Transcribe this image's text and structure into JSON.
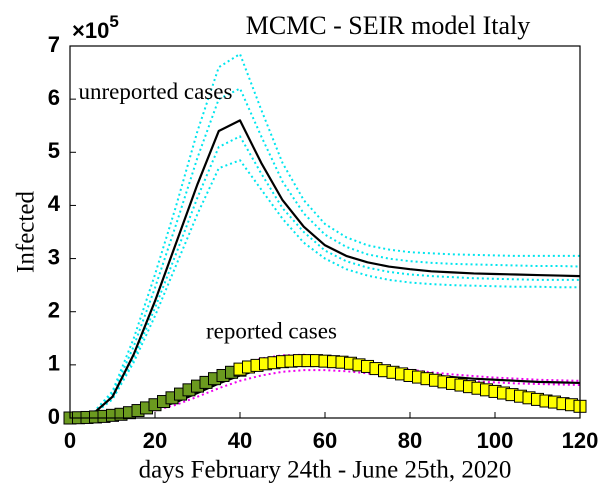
{
  "chart_data": {
    "type": "line",
    "title": "MCMC - SEIR model Italy",
    "x_label": "days February 24th - June 25th, 2020",
    "y_label": "Infected",
    "y_multiplier": {
      "base": "×10",
      "exponent": "5"
    },
    "annotations": [
      {
        "text": "unreported cases",
        "x": 2,
        "y": 6.1
      },
      {
        "text": "reported cases",
        "x": 32,
        "y": 1.6
      }
    ],
    "xlim": [
      0,
      120
    ],
    "xticks": [
      0,
      20,
      40,
      60,
      80,
      100,
      120
    ],
    "ylim": [
      0,
      7
    ],
    "yticks": [
      0,
      1,
      2,
      3,
      4,
      5,
      6,
      7
    ],
    "x": [
      0,
      5,
      10,
      15,
      20,
      25,
      30,
      35,
      40,
      45,
      50,
      55,
      60,
      65,
      70,
      75,
      80,
      85,
      90,
      95,
      100,
      105,
      110,
      115,
      120
    ],
    "series": [
      {
        "color": "#00e5ee",
        "style": "dotted",
        "values": [
          0,
          0.06,
          0.5,
          1.5,
          2.7,
          4.0,
          5.4,
          6.6,
          6.85,
          5.8,
          4.8,
          4.1,
          3.65,
          3.4,
          3.25,
          3.17,
          3.12,
          3.1,
          3.08,
          3.07,
          3.06,
          3.05,
          3.05,
          3.05,
          3.05
        ]
      },
      {
        "color": "#00e5ee",
        "style": "dotted",
        "values": [
          0,
          0.06,
          0.45,
          1.35,
          2.45,
          3.65,
          4.9,
          6.0,
          6.2,
          5.3,
          4.45,
          3.85,
          3.45,
          3.22,
          3.08,
          3.0,
          2.95,
          2.92,
          2.9,
          2.89,
          2.88,
          2.87,
          2.86,
          2.86,
          2.85
        ]
      },
      {
        "color": "#00e5ee",
        "style": "dotted",
        "values": [
          0,
          0.05,
          0.38,
          1.13,
          2.07,
          3.1,
          4.15,
          5.1,
          5.3,
          4.6,
          3.95,
          3.5,
          3.15,
          2.95,
          2.83,
          2.75,
          2.7,
          2.67,
          2.65,
          2.63,
          2.62,
          2.61,
          2.6,
          2.6,
          2.6
        ]
      },
      {
        "color": "#00e5ee",
        "style": "dotted",
        "values": [
          0,
          0.04,
          0.35,
          1.05,
          1.92,
          2.88,
          3.84,
          4.7,
          4.85,
          4.3,
          3.75,
          3.3,
          3.0,
          2.8,
          2.68,
          2.6,
          2.55,
          2.52,
          2.5,
          2.49,
          2.48,
          2.47,
          2.47,
          2.46,
          2.46
        ]
      },
      {
        "color": "#000000",
        "style": "solid",
        "values": [
          0,
          0.05,
          0.4,
          1.2,
          2.2,
          3.3,
          4.4,
          5.4,
          5.6,
          4.8,
          4.1,
          3.6,
          3.25,
          3.05,
          2.93,
          2.85,
          2.8,
          2.76,
          2.74,
          2.72,
          2.71,
          2.7,
          2.69,
          2.68,
          2.67
        ]
      },
      {
        "color": "#ee00ee",
        "style": "dotted",
        "values": [
          0,
          0.006,
          0.04,
          0.1,
          0.21,
          0.37,
          0.58,
          0.8,
          0.98,
          1.12,
          1.18,
          1.19,
          1.16,
          1.11,
          1.04,
          0.97,
          0.91,
          0.86,
          0.82,
          0.79,
          0.76,
          0.74,
          0.72,
          0.71,
          0.7
        ]
      },
      {
        "color": "#ee00ee",
        "style": "dotted",
        "values": [
          0,
          0.004,
          0.025,
          0.07,
          0.14,
          0.25,
          0.4,
          0.56,
          0.7,
          0.8,
          0.87,
          0.9,
          0.9,
          0.88,
          0.84,
          0.8,
          0.77,
          0.74,
          0.71,
          0.69,
          0.67,
          0.65,
          0.64,
          0.63,
          0.62
        ]
      },
      {
        "color": "#000000",
        "style": "solid",
        "values": [
          0,
          0.005,
          0.03,
          0.08,
          0.17,
          0.3,
          0.47,
          0.65,
          0.8,
          0.92,
          0.99,
          1.02,
          1.01,
          0.98,
          0.93,
          0.88,
          0.84,
          0.8,
          0.77,
          0.74,
          0.72,
          0.7,
          0.68,
          0.67,
          0.66
        ]
      },
      {
        "color": "#6b9a1f",
        "style": "square",
        "x": [
          0,
          2,
          4,
          6,
          8,
          10,
          12,
          14,
          16,
          18,
          20,
          22,
          24,
          26,
          28,
          30,
          32,
          34,
          36,
          38,
          40
        ],
        "values": [
          0,
          0.005,
          0.01,
          0.02,
          0.03,
          0.05,
          0.07,
          0.1,
          0.14,
          0.19,
          0.25,
          0.31,
          0.38,
          0.45,
          0.53,
          0.6,
          0.67,
          0.74,
          0.8,
          0.86,
          0.9
        ]
      },
      {
        "color": "#ffff00",
        "style": "square",
        "x": [
          40,
          42,
          44,
          46,
          48,
          50,
          52,
          54,
          56,
          58,
          60,
          62,
          64,
          66,
          68,
          70,
          72,
          74,
          76,
          78,
          80,
          82,
          84,
          86,
          88,
          90,
          92,
          94,
          96,
          98,
          100,
          102,
          104,
          106,
          108,
          110,
          112,
          114,
          116,
          118,
          120
        ],
        "values": [
          0.92,
          0.96,
          0.99,
          1.02,
          1.04,
          1.06,
          1.07,
          1.08,
          1.08,
          1.08,
          1.07,
          1.06,
          1.05,
          1.03,
          1.0,
          0.97,
          0.93,
          0.89,
          0.86,
          0.83,
          0.8,
          0.77,
          0.74,
          0.71,
          0.68,
          0.65,
          0.62,
          0.59,
          0.56,
          0.53,
          0.5,
          0.47,
          0.44,
          0.41,
          0.38,
          0.35,
          0.32,
          0.3,
          0.27,
          0.25,
          0.22
        ]
      }
    ],
    "box": true
  }
}
